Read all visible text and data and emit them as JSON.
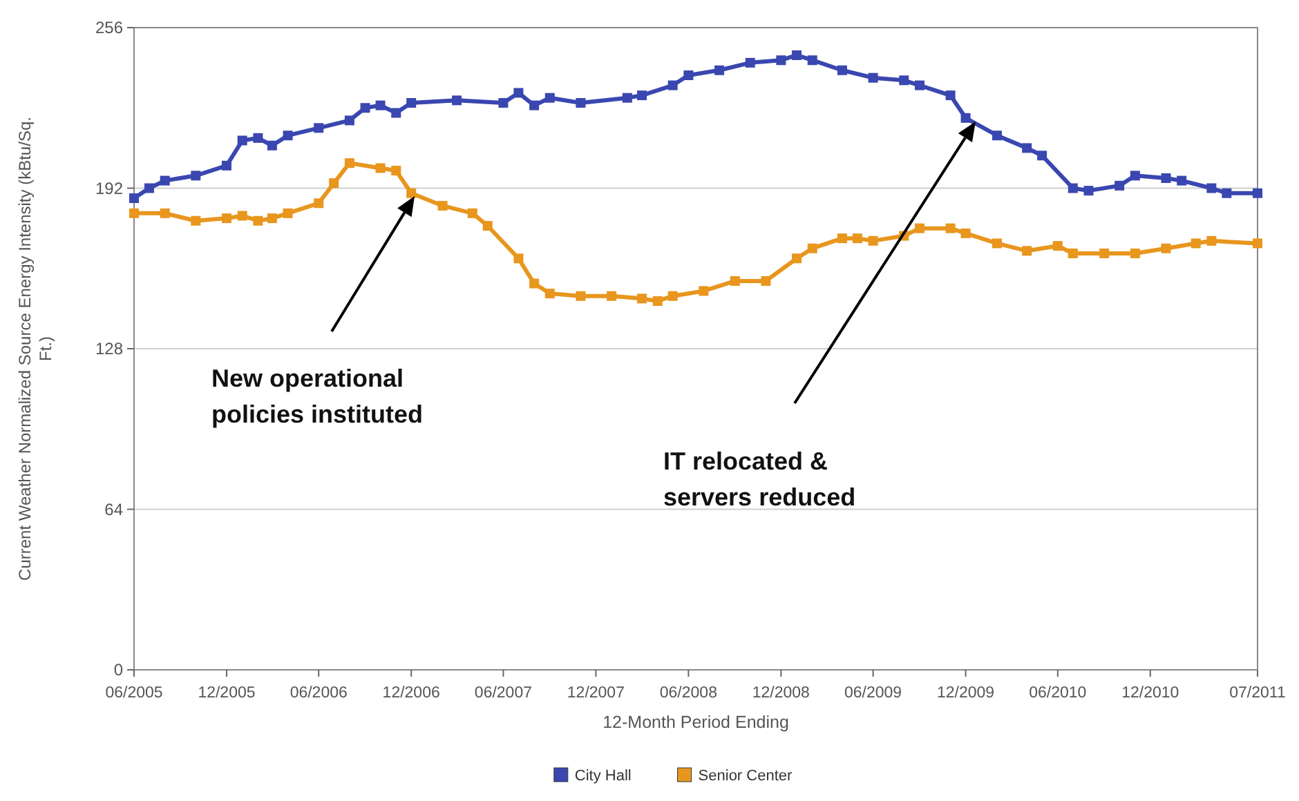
{
  "chart_data": {
    "type": "line",
    "xlabel": "12-Month Period Ending",
    "ylabel": "Current Weather Normalized Source Energy Intensity (kBtu/Sq. Ft.)",
    "xlim": [
      "2005-06",
      "2011-07"
    ],
    "ylim": [
      0,
      256
    ],
    "yticks": [
      0,
      64,
      128,
      192,
      256
    ],
    "xticks": [
      {
        "value": "2005-06",
        "label": "06/2005"
      },
      {
        "value": "2005-12",
        "label": "12/2005"
      },
      {
        "value": "2006-06",
        "label": "06/2006"
      },
      {
        "value": "2006-12",
        "label": "12/2006"
      },
      {
        "value": "2007-06",
        "label": "06/2007"
      },
      {
        "value": "2007-12",
        "label": "12/2007"
      },
      {
        "value": "2008-06",
        "label": "06/2008"
      },
      {
        "value": "2008-12",
        "label": "12/2008"
      },
      {
        "value": "2009-06",
        "label": "06/2009"
      },
      {
        "value": "2009-12",
        "label": "12/2009"
      },
      {
        "value": "2010-06",
        "label": "06/2010"
      },
      {
        "value": "2010-12",
        "label": "12/2010"
      },
      {
        "value": "2011-07",
        "label": "07/2011"
      }
    ],
    "grid": "y",
    "legend": "bottom",
    "marker": "square",
    "line_style": "solid",
    "series": [
      {
        "name": "City Hall",
        "color": "#3a47b0",
        "x": [
          "2005-06",
          "2005-07",
          "2005-08",
          "2005-10",
          "2005-12",
          "2006-01",
          "2006-02",
          "2006-03",
          "2006-04",
          "2006-06",
          "2006-08",
          "2006-09",
          "2006-10",
          "2006-11",
          "2006-12",
          "2007-03",
          "2007-06",
          "2007-07",
          "2007-08",
          "2007-09",
          "2007-11",
          "2008-02",
          "2008-03",
          "2008-05",
          "2008-06",
          "2008-08",
          "2008-10",
          "2008-12",
          "2009-01",
          "2009-02",
          "2009-04",
          "2009-06",
          "2009-08",
          "2009-09",
          "2009-11",
          "2009-12",
          "2010-02",
          "2010-04",
          "2010-05",
          "2010-07",
          "2010-08",
          "2010-10",
          "2010-11",
          "2011-01",
          "2011-02",
          "2011-04",
          "2011-05",
          "2011-07"
        ],
        "values": [
          188,
          192,
          195,
          197,
          201,
          211,
          212,
          209,
          213,
          216,
          219,
          224,
          225,
          222,
          226,
          227,
          226,
          230,
          225,
          228,
          226,
          228,
          229,
          233,
          237,
          239,
          242,
          243,
          245,
          243,
          239,
          236,
          235,
          233,
          229,
          220,
          213,
          208,
          205,
          192,
          191,
          193,
          197,
          196,
          195,
          192,
          190,
          190
        ]
      },
      {
        "name": "Senior Center",
        "color": "#e8961e",
        "x": [
          "2005-06",
          "2005-08",
          "2005-10",
          "2005-12",
          "2006-01",
          "2006-02",
          "2006-03",
          "2006-04",
          "2006-06",
          "2006-07",
          "2006-08",
          "2006-10",
          "2006-11",
          "2006-12",
          "2007-02",
          "2007-04",
          "2007-05",
          "2007-07",
          "2007-08",
          "2007-09",
          "2007-11",
          "2008-01",
          "2008-03",
          "2008-04",
          "2008-05",
          "2008-07",
          "2008-09",
          "2008-11",
          "2009-01",
          "2009-02",
          "2009-04",
          "2009-05",
          "2009-06",
          "2009-08",
          "2009-09",
          "2009-11",
          "2009-12",
          "2010-02",
          "2010-04",
          "2010-06",
          "2010-07",
          "2010-09",
          "2010-11",
          "2011-01",
          "2011-03",
          "2011-04",
          "2011-07"
        ],
        "values": [
          182,
          182,
          179,
          180,
          181,
          179,
          180,
          182,
          186,
          194,
          202,
          200,
          199,
          190,
          185,
          182,
          177,
          164,
          154,
          150,
          149,
          149,
          148,
          147,
          149,
          151,
          155,
          155,
          164,
          168,
          172,
          172,
          171,
          173,
          176,
          176,
          174,
          170,
          167,
          169,
          166,
          166,
          166,
          168,
          170,
          171,
          170
        ]
      }
    ],
    "annotations": [
      "New operational policies instituted",
      "IT relocated & servers reduced"
    ]
  }
}
